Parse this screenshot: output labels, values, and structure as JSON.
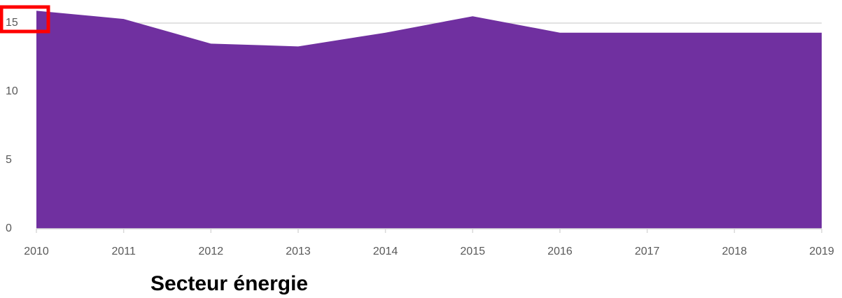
{
  "chart_data": {
    "type": "area",
    "title": "Secteur énergie",
    "x": [
      2010,
      2011,
      2012,
      2013,
      2014,
      2015,
      2016,
      2017,
      2018,
      2019
    ],
    "values": [
      15.9,
      15.3,
      13.5,
      13.3,
      14.3,
      15.5,
      14.3,
      14.3,
      14.3,
      14.3
    ],
    "color": "#7030a0",
    "xlim": [
      2010,
      2019
    ],
    "xticks": [
      2010,
      2011,
      2012,
      2013,
      2014,
      2015,
      2016,
      2017,
      2018,
      2019
    ],
    "ylim": [
      0,
      16
    ],
    "yticks": [
      0,
      5,
      10,
      15
    ],
    "grid": true
  }
}
